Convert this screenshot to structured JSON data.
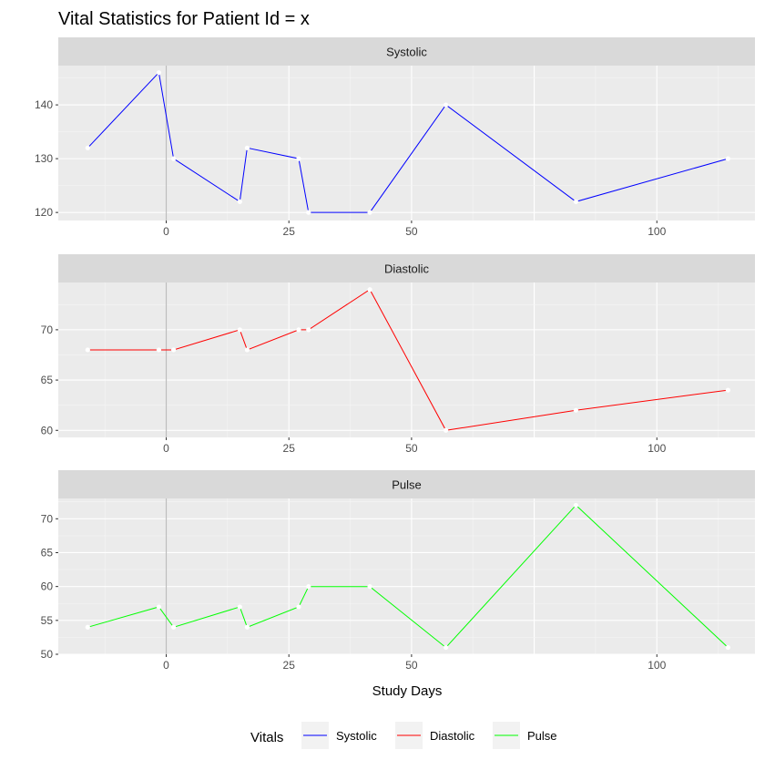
{
  "title": "Vital Statistics for Patient Id = x",
  "chart_data": [
    {
      "type": "line",
      "panel": "Systolic",
      "color": "#0000ff",
      "x": [
        -16,
        -1.5,
        1.5,
        15,
        16.5,
        27,
        29,
        41.5,
        57,
        83.5,
        114.5
      ],
      "y": [
        132,
        146,
        130,
        122,
        132,
        130,
        120,
        120,
        140,
        122,
        130
      ],
      "xlim": [
        -22,
        120
      ],
      "ylim": [
        118.5,
        147.3
      ],
      "xticks": [
        0,
        25,
        50,
        100
      ],
      "xtick_labels": [
        "0",
        "25",
        "50",
        "100"
      ],
      "yticks": [
        120,
        130,
        140
      ],
      "ytick_labels": [
        "120",
        "130",
        "140"
      ]
    },
    {
      "type": "line",
      "panel": "Diastolic",
      "color": "#ff0000",
      "x": [
        -16,
        -1.5,
        1.5,
        15,
        16.5,
        27,
        29,
        41.5,
        57,
        83.5,
        114.5
      ],
      "y": [
        68,
        68,
        68,
        70,
        68,
        70,
        70,
        74,
        60,
        62,
        64
      ],
      "xlim": [
        -22,
        120
      ],
      "ylim": [
        59.3,
        74.7
      ],
      "xticks": [
        0,
        25,
        50,
        100
      ],
      "xtick_labels": [
        "0",
        "25",
        "50",
        "100"
      ],
      "yticks": [
        60,
        65,
        70
      ],
      "ytick_labels": [
        "60",
        "65",
        "70"
      ]
    },
    {
      "type": "line",
      "panel": "Pulse",
      "color": "#00ff00",
      "x": [
        -16,
        -1.5,
        1.5,
        15,
        16.5,
        27,
        29,
        41.5,
        57,
        83.5,
        114.5
      ],
      "y": [
        54,
        57,
        54,
        57,
        54,
        57,
        60,
        60,
        51,
        72,
        51
      ],
      "xlim": [
        -22,
        120
      ],
      "ylim": [
        50,
        73
      ],
      "xticks": [
        0,
        25,
        50,
        100
      ],
      "xtick_labels": [
        "0",
        "25",
        "50",
        "100"
      ],
      "yticks": [
        50,
        55,
        60,
        65,
        70
      ],
      "ytick_labels": [
        "50",
        "55",
        "60",
        "65",
        "70"
      ]
    }
  ],
  "x_axis_title": "Study Days",
  "vline_at": 0,
  "legend": {
    "title": "Vitals",
    "position": "bottom",
    "entries": [
      {
        "label": "Systolic",
        "color": "#0000ff"
      },
      {
        "label": "Diastolic",
        "color": "#ff0000"
      },
      {
        "label": "Pulse",
        "color": "#00ff00"
      }
    ]
  },
  "theme": {
    "panel_bg": "#ebebeb",
    "strip_bg": "#d9d9d9",
    "grid_major": "#ffffff",
    "vline_color": "#bdbdbd",
    "point_color": "#ffffff"
  }
}
